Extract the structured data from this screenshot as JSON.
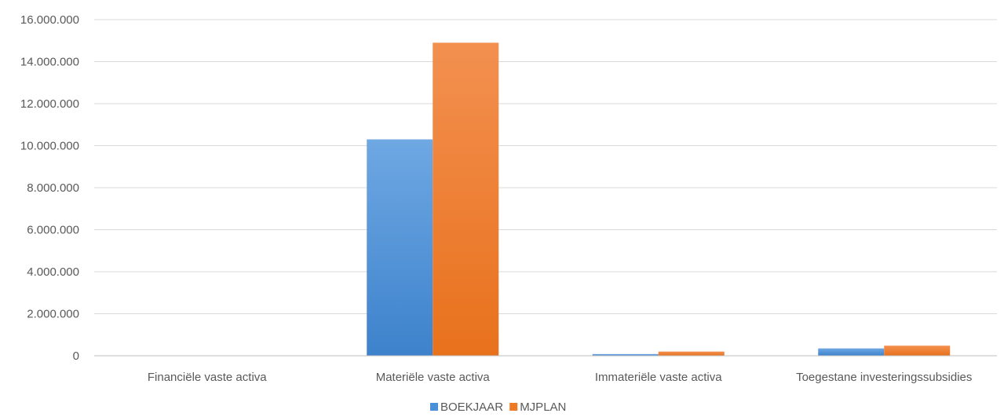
{
  "chart_data": {
    "type": "bar",
    "categories": [
      "Financiële vaste activa",
      "Materiële vaste activa",
      "Immateriële vaste activa",
      "Toegestane investeringssubsidies"
    ],
    "series": [
      {
        "name": "BOEKJAAR",
        "values": [
          0,
          10300000,
          80000,
          350000
        ],
        "color": "#4a90d9"
      },
      {
        "name": "MJPLAN",
        "values": [
          0,
          14900000,
          200000,
          480000
        ],
        "color": "#f07a24"
      }
    ],
    "yticks": [
      "0",
      "2.000.000",
      "4.000.000",
      "6.000.000",
      "8.000.000",
      "10.000.000",
      "12.000.000",
      "14.000.000",
      "16.000.000"
    ],
    "ylim": [
      0,
      16000000
    ],
    "grid": true,
    "legend_position": "bottom"
  }
}
